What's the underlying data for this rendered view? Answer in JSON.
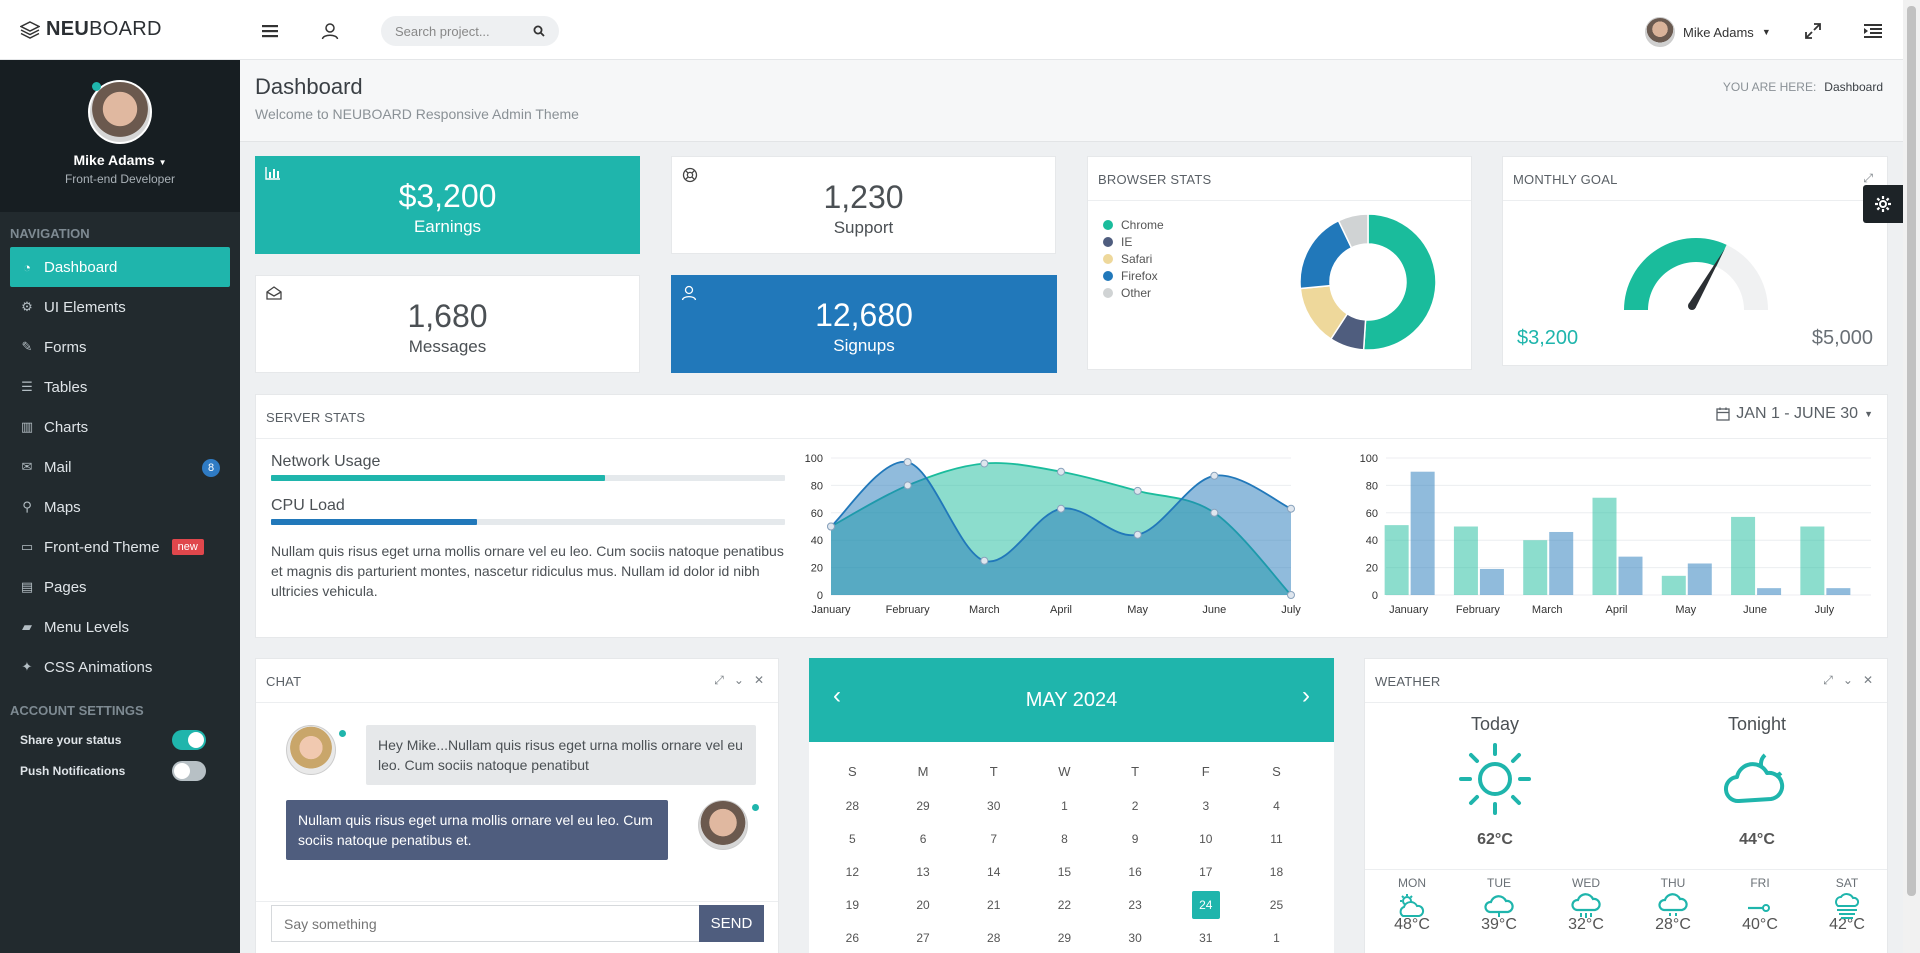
{
  "brand": {
    "part1": "NEU",
    "part2": "BOARD"
  },
  "topbar": {
    "search_placeholder": "Search project...",
    "user_name": "Mike Adams"
  },
  "profile": {
    "name": "Mike Adams",
    "role": "Front-end Developer"
  },
  "nav": {
    "heading": "NAVIGATION",
    "items": [
      {
        "label": "Dashboard",
        "icon": "dashboard-icon",
        "glyph": "◔"
      },
      {
        "label": "UI Elements",
        "icon": "cogs-icon",
        "glyph": "⚙"
      },
      {
        "label": "Forms",
        "icon": "edit-icon",
        "glyph": "✎"
      },
      {
        "label": "Tables",
        "icon": "list-icon",
        "glyph": "☰"
      },
      {
        "label": "Charts",
        "icon": "bar-chart-icon",
        "glyph": "▥"
      },
      {
        "label": "Mail",
        "icon": "envelope-icon",
        "glyph": "✉",
        "badge": "8"
      },
      {
        "label": "Maps",
        "icon": "map-marker-icon",
        "glyph": "⚲"
      },
      {
        "label": "Front-end Theme",
        "icon": "desktop-icon",
        "glyph": "▭",
        "badge_new": "new"
      },
      {
        "label": "Pages",
        "icon": "file-icon",
        "glyph": "▤"
      },
      {
        "label": "Menu Levels",
        "icon": "folder-icon",
        "glyph": "▰"
      },
      {
        "label": "CSS Animations",
        "icon": "magic-icon",
        "glyph": "✦"
      }
    ]
  },
  "account": {
    "heading": "ACCOUNT SETTINGS",
    "share_status": "Share your status",
    "share_on": true,
    "push_notifications": "Push Notifications",
    "push_on": false
  },
  "page": {
    "title": "Dashboard",
    "subtitle": "Welcome to NEUBOARD Responsive Admin Theme",
    "crumb_label": "YOU ARE HERE:",
    "crumb_current": "Dashboard"
  },
  "stats": {
    "earnings": {
      "value": "$3,200",
      "label": "Earnings",
      "color": "#1fb5ac"
    },
    "support": {
      "value": "1,230",
      "label": "Support"
    },
    "messages": {
      "value": "1,680",
      "label": "Messages"
    },
    "signups": {
      "value": "12,680",
      "label": "Signups",
      "color": "#2178ba"
    }
  },
  "browser_stats": {
    "title": "BROWSER STATS",
    "legend": [
      {
        "name": "Chrome",
        "color": "#1abc9c",
        "value": 50
      },
      {
        "name": "IE",
        "color": "#4f5d7e",
        "value": 8
      },
      {
        "name": "Safari",
        "color": "#eed89b",
        "value": 14
      },
      {
        "name": "Firefox",
        "color": "#2178ba",
        "value": 19
      },
      {
        "name": "Other",
        "color": "#d0d3d4",
        "value": 7
      }
    ]
  },
  "monthly_goal": {
    "title": "MONTHLY GOAL",
    "current": "$3,200",
    "target": "$5,000",
    "fraction": 0.64
  },
  "server_stats": {
    "title": "SERVER STATS",
    "range": "JAN 1 - JUNE 30",
    "network_label": "Network Usage",
    "network_fraction": 0.65,
    "cpu_label": "CPU Load",
    "cpu_fraction": 0.4,
    "text": "Nullam quis risus eget urna mollis ornare vel eu leo. Cum sociis natoque penatibus et magnis dis parturient montes, nascetur ridiculus mus. Nullam id dolor id nibh ultricies vehicula."
  },
  "chart_data": [
    {
      "type": "area",
      "categories": [
        "January",
        "February",
        "March",
        "April",
        "May",
        "June",
        "July"
      ],
      "ylim": [
        0,
        100
      ],
      "yticks": [
        0,
        20,
        40,
        60,
        80,
        100
      ],
      "series": [
        {
          "values": [
            50,
            80,
            96,
            90,
            76,
            60,
            0
          ],
          "color": "#1abc9c"
        },
        {
          "values": [
            50,
            97,
            25,
            63,
            44,
            87,
            63
          ],
          "color": "#2178ba"
        }
      ]
    },
    {
      "type": "bar",
      "categories": [
        "January",
        "February",
        "March",
        "April",
        "May",
        "June",
        "July"
      ],
      "ylim": [
        0,
        100
      ],
      "yticks": [
        0,
        20,
        40,
        60,
        80,
        100
      ],
      "series": [
        {
          "values": [
            51,
            50,
            40,
            71,
            14,
            57,
            50
          ],
          "color": "#1abc9c"
        },
        {
          "values": [
            90,
            19,
            46,
            28,
            23,
            5,
            5
          ],
          "color": "#2178ba"
        }
      ]
    }
  ],
  "chat": {
    "title": "CHAT",
    "msg_in": "Hey Mike...Nullam quis risus eget urna mollis ornare vel eu leo. Cum sociis natoque penatibut",
    "msg_out": "Nullam quis risus eget urna mollis ornare vel eu leo. Cum sociis natoque penatibus et.",
    "input_placeholder": "Say something",
    "send": "SEND"
  },
  "calendar": {
    "title": "MAY 2024",
    "prev": "‹",
    "next": "›",
    "weekdays": [
      "S",
      "M",
      "T",
      "W",
      "T",
      "F",
      "S"
    ],
    "weeks": [
      [
        "28",
        "29",
        "30",
        "1",
        "2",
        "3",
        "4"
      ],
      [
        "5",
        "6",
        "7",
        "8",
        "9",
        "10",
        "11"
      ],
      [
        "12",
        "13",
        "14",
        "15",
        "16",
        "17",
        "18"
      ],
      [
        "19",
        "20",
        "21",
        "22",
        "23",
        "24",
        "25"
      ],
      [
        "26",
        "27",
        "28",
        "29",
        "30",
        "31",
        "1"
      ]
    ],
    "today": "24"
  },
  "weather": {
    "title": "WEATHER",
    "today_label": "Today",
    "today_temp": "62°C",
    "tonight_label": "Tonight",
    "tonight_temp": "44°C",
    "days": [
      {
        "d": "MON",
        "t": "48°C",
        "icon": "cloud-sun-icon"
      },
      {
        "d": "TUE",
        "t": "39°C",
        "icon": "cloud-icon"
      },
      {
        "d": "WED",
        "t": "32°C",
        "icon": "cloud-rain-icon"
      },
      {
        "d": "THU",
        "t": "28°C",
        "icon": "cloud-drizzle-icon"
      },
      {
        "d": "FRI",
        "t": "40°C",
        "icon": "wind-icon"
      },
      {
        "d": "SAT",
        "t": "42°C",
        "icon": "fog-icon"
      }
    ],
    "accent": "#1fb5ac"
  }
}
